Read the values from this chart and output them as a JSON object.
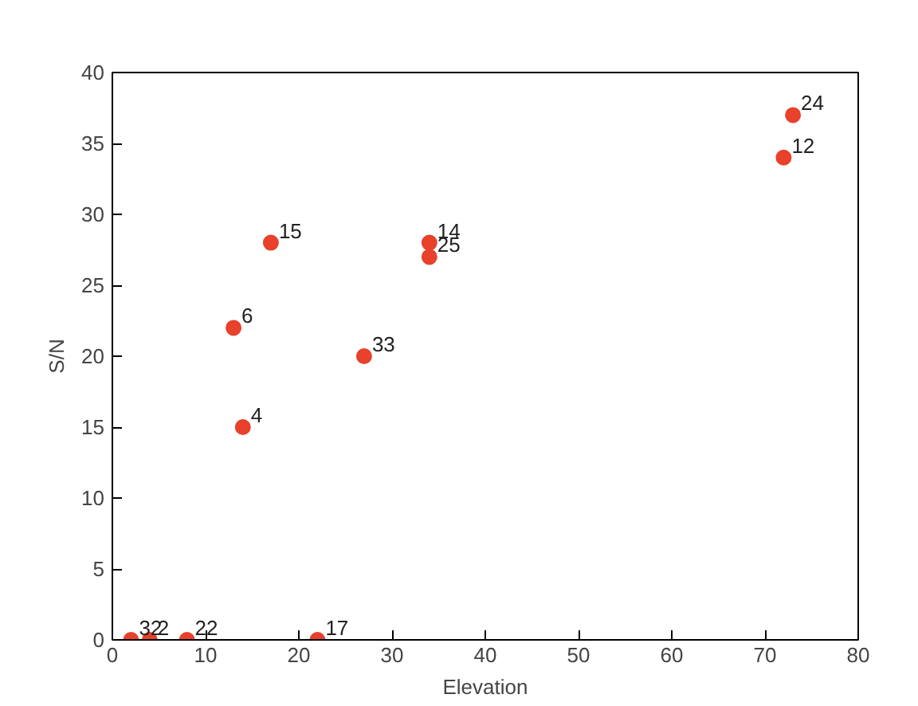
{
  "chart_data": {
    "type": "scatter",
    "xlabel": "Elevation",
    "ylabel": "S/N",
    "x": [
      2,
      4,
      8,
      22,
      14,
      13,
      17,
      27,
      34,
      34,
      72,
      73
    ],
    "series": [
      {
        "color": "#e8412c",
        "values": [
          0,
          0,
          0,
          0,
          15,
          22,
          28,
          20,
          28,
          27,
          34,
          37
        ]
      }
    ],
    "xlim": [
      0,
      80
    ],
    "ylim": [
      0,
      40
    ],
    "xticks": [
      0,
      10,
      20,
      30,
      40,
      50,
      60,
      70,
      80
    ],
    "yticks": [
      0,
      5,
      10,
      15,
      20,
      25,
      30,
      35,
      40
    ],
    "grid": false,
    "marker": "circle",
    "annotations": [
      {
        "text": "32",
        "x": 2,
        "y": 0
      },
      {
        "text": "2",
        "x": 4,
        "y": 0
      },
      {
        "text": "22",
        "x": 8,
        "y": 0
      },
      {
        "text": "17",
        "x": 22,
        "y": 0
      },
      {
        "text": "4",
        "x": 14,
        "y": 15
      },
      {
        "text": "6",
        "x": 13,
        "y": 22
      },
      {
        "text": "15",
        "x": 17,
        "y": 28
      },
      {
        "text": "33",
        "x": 27,
        "y": 20
      },
      {
        "text": "14",
        "x": 34,
        "y": 28
      },
      {
        "text": "25",
        "x": 34,
        "y": 27
      },
      {
        "text": "12",
        "x": 72,
        "y": 34
      },
      {
        "text": "24",
        "x": 73,
        "y": 37
      }
    ]
  }
}
